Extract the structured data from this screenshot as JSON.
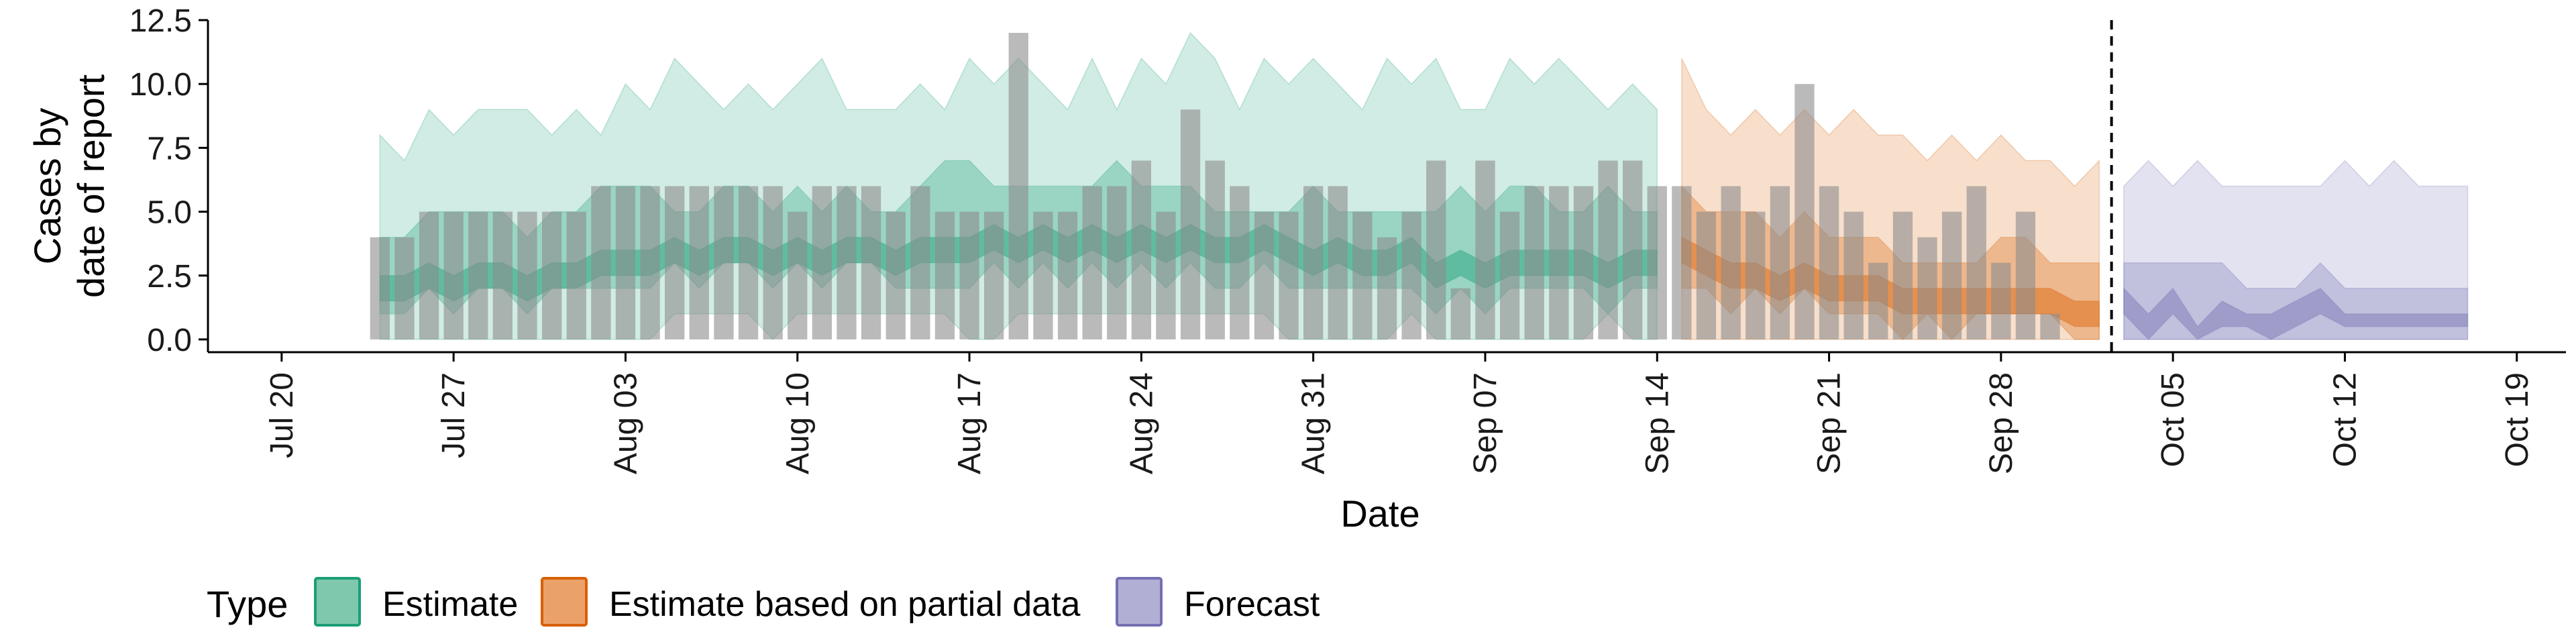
{
  "chart_data": {
    "type": "bar",
    "xlabel": "Date",
    "ylabel_lines": [
      "Cases by",
      "date of report"
    ],
    "ylim": [
      -0.5,
      12.5
    ],
    "yticks": [
      0,
      2.5,
      5,
      7.5,
      10,
      12.5
    ],
    "ytick_labels": [
      "0.0",
      "2.5",
      "5.0",
      "7.5",
      "10.0",
      "12.5"
    ],
    "x_range": [
      "2020-07-17",
      "2020-10-21"
    ],
    "x_ticks": [
      {
        "date": "2020-07-20",
        "label": "Jul 20"
      },
      {
        "date": "2020-07-27",
        "label": "Jul 27"
      },
      {
        "date": "2020-08-03",
        "label": "Aug 03"
      },
      {
        "date": "2020-08-10",
        "label": "Aug 10"
      },
      {
        "date": "2020-08-17",
        "label": "Aug 17"
      },
      {
        "date": "2020-08-24",
        "label": "Aug 24"
      },
      {
        "date": "2020-08-31",
        "label": "Aug 31"
      },
      {
        "date": "2020-09-07",
        "label": "Sep 07"
      },
      {
        "date": "2020-09-14",
        "label": "Sep 14"
      },
      {
        "date": "2020-09-21",
        "label": "Sep 21"
      },
      {
        "date": "2020-09-28",
        "label": "Sep 28"
      },
      {
        "date": "2020-10-05",
        "label": "Oct 05"
      },
      {
        "date": "2020-10-12",
        "label": "Oct 12"
      },
      {
        "date": "2020-10-19",
        "label": "Oct 19"
      }
    ],
    "vline_date": "2020-10-02",
    "bar_color": "#8c8c8c",
    "bars": {
      "start": "2020-07-24",
      "values": [
        4,
        4,
        5,
        5,
        5,
        5,
        5,
        5,
        5,
        6,
        6,
        6,
        6,
        6,
        6,
        6,
        6,
        5,
        6,
        6,
        6,
        5,
        6,
        5,
        5,
        5,
        12,
        5,
        5,
        6,
        6,
        7,
        5,
        9,
        7,
        6,
        5,
        5,
        6,
        6,
        5,
        4,
        5,
        7,
        2,
        7,
        5,
        6,
        6,
        6,
        7,
        7,
        6,
        6,
        5,
        6,
        5,
        6,
        10,
        6,
        5,
        3,
        5,
        4,
        5,
        6,
        3,
        5,
        1
      ]
    },
    "series": [
      {
        "name": "Estimate",
        "color": "#1b9e77",
        "start": "2020-07-24",
        "ci90_upper": [
          8,
          7,
          9,
          8,
          9,
          9,
          9,
          8,
          9,
          8,
          10,
          9,
          11,
          10,
          9,
          10,
          9,
          10,
          11,
          9,
          9,
          9,
          10,
          9,
          11,
          10,
          11,
          10,
          9,
          11,
          9,
          11,
          10,
          12,
          11,
          9,
          11,
          10,
          11,
          10,
          9,
          11,
          10,
          11,
          9,
          9,
          11,
          10,
          11,
          10,
          9,
          10,
          9
        ],
        "ci90_lower": [
          0,
          0,
          0,
          0,
          0,
          0,
          0,
          0,
          0,
          0,
          0,
          0,
          1,
          1,
          1,
          1,
          0,
          1,
          1,
          1,
          1,
          1,
          1,
          1,
          0,
          0,
          1,
          1,
          1,
          1,
          1,
          1,
          1,
          1,
          1,
          1,
          1,
          0,
          0,
          0,
          0,
          0,
          1,
          0,
          0,
          0,
          0,
          0,
          0,
          0,
          1,
          0,
          0
        ],
        "ci50_upper": [
          4,
          4,
          5,
          5,
          5,
          5,
          4,
          5,
          5,
          6,
          6,
          6,
          5,
          5,
          6,
          6,
          5,
          6,
          5,
          6,
          5,
          5,
          6,
          7,
          7,
          6,
          6,
          6,
          6,
          6,
          7,
          6,
          6,
          6,
          5,
          5,
          5,
          5,
          6,
          5,
          5,
          5,
          5,
          5,
          6,
          5,
          6,
          6,
          5,
          5,
          6,
          5,
          5
        ],
        "ci50_lower": [
          1,
          1,
          2,
          1,
          2,
          2,
          1,
          2,
          2,
          2,
          2,
          2,
          3,
          2,
          3,
          3,
          2,
          3,
          2,
          3,
          3,
          2,
          2,
          2,
          2,
          3,
          2,
          3,
          2,
          3,
          2,
          3,
          2,
          3,
          2,
          2,
          3,
          2,
          2,
          2,
          2,
          2,
          2,
          1,
          2,
          1,
          2,
          2,
          2,
          2,
          1,
          2,
          2
        ],
        "ci20_upper": [
          2.5,
          2.5,
          3,
          2.5,
          3,
          3,
          2.5,
          3,
          3,
          3.5,
          3.5,
          3.5,
          4,
          3.5,
          4,
          4,
          3.5,
          4,
          3.5,
          4,
          4,
          3.5,
          4,
          4,
          4,
          4.5,
          4,
          4.5,
          4,
          4.5,
          4,
          4.5,
          4,
          4.5,
          4,
          4,
          4.5,
          4,
          3.5,
          4,
          3.5,
          3.5,
          4,
          3,
          3.5,
          3,
          3.5,
          3.5,
          3.5,
          3.5,
          3,
          3.5,
          3.5
        ],
        "ci20_lower": [
          1.5,
          1.5,
          2,
          1.5,
          2,
          2,
          1.5,
          2,
          2,
          2.5,
          2.5,
          2.5,
          3,
          2.5,
          3,
          3,
          2.5,
          3,
          2.5,
          3,
          3,
          2.5,
          3,
          3,
          3,
          3.5,
          3,
          3.5,
          3,
          3.5,
          3,
          3.5,
          3,
          3.5,
          3,
          3,
          3.5,
          3,
          2.5,
          3,
          2.5,
          2.5,
          3,
          2,
          2.5,
          2,
          2.5,
          2.5,
          2.5,
          2.5,
          2,
          2.5,
          2.5
        ]
      },
      {
        "name": "Estimate based on partial data",
        "color": "#d95f02",
        "start": "2020-09-15",
        "ci90_upper": [
          11,
          9,
          8,
          9,
          8,
          9,
          8,
          9,
          8,
          8,
          7,
          8,
          7,
          8,
          7,
          7,
          6,
          7
        ],
        "ci90_lower": [
          0,
          0,
          0,
          0,
          0,
          0,
          0,
          0,
          0,
          0,
          0,
          0,
          0,
          0,
          0,
          0,
          0,
          0
        ],
        "ci50_upper": [
          6,
          5,
          5,
          5,
          4,
          5,
          4,
          4,
          4,
          3,
          3,
          3,
          3,
          4,
          4,
          3,
          3,
          3
        ],
        "ci50_lower": [
          2,
          2,
          1,
          2,
          1,
          2,
          1,
          1,
          1,
          0,
          1,
          0,
          1,
          1,
          1,
          1,
          0,
          0
        ],
        "ci20_upper": [
          4,
          3.5,
          3,
          3,
          2.5,
          3,
          2.5,
          2.5,
          2.5,
          2,
          2,
          2,
          2,
          2,
          2,
          2,
          1.5,
          1.5
        ],
        "ci20_lower": [
          3,
          2.5,
          2,
          2,
          1.5,
          2,
          1.5,
          1.5,
          1.5,
          1,
          1,
          1,
          1,
          1,
          1,
          1,
          0.5,
          0.5
        ]
      },
      {
        "name": "Forecast",
        "color": "#7570b3",
        "start": "2020-10-03",
        "ci90_upper": [
          6,
          7,
          6,
          7,
          6,
          6,
          6,
          6,
          6,
          7,
          6,
          7,
          6,
          6,
          6
        ],
        "ci90_lower": [
          0,
          0,
          0,
          0,
          0,
          0,
          0,
          0,
          0,
          0,
          0,
          0,
          0,
          0,
          0
        ],
        "ci50_upper": [
          3,
          3,
          3,
          3,
          3,
          2,
          2,
          2,
          3,
          2,
          2,
          2,
          2,
          2,
          2
        ],
        "ci50_lower": [
          0,
          0,
          0,
          0,
          0,
          0,
          0,
          0,
          0,
          0,
          0,
          0,
          0,
          0,
          0
        ],
        "ci20_upper": [
          2,
          1,
          2,
          0.5,
          1.5,
          1,
          1,
          1.5,
          2,
          1,
          1,
          1,
          1,
          1,
          1
        ],
        "ci20_lower": [
          1,
          0,
          1,
          0,
          0.5,
          0.5,
          0,
          0.5,
          1,
          0.5,
          0.5,
          0.5,
          0.5,
          0.5,
          0.5
        ]
      }
    ],
    "legend": {
      "title": "Type",
      "position": "bottom",
      "items": [
        {
          "label": "Estimate",
          "fill": "#7fc8ad",
          "stroke": "#1b9e77"
        },
        {
          "label": "Estimate based on partial data",
          "fill": "#eaa26a",
          "stroke": "#d95f02"
        },
        {
          "label": "Forecast",
          "fill": "#b2afd5",
          "stroke": "#7570b3"
        }
      ]
    },
    "grid": false
  }
}
